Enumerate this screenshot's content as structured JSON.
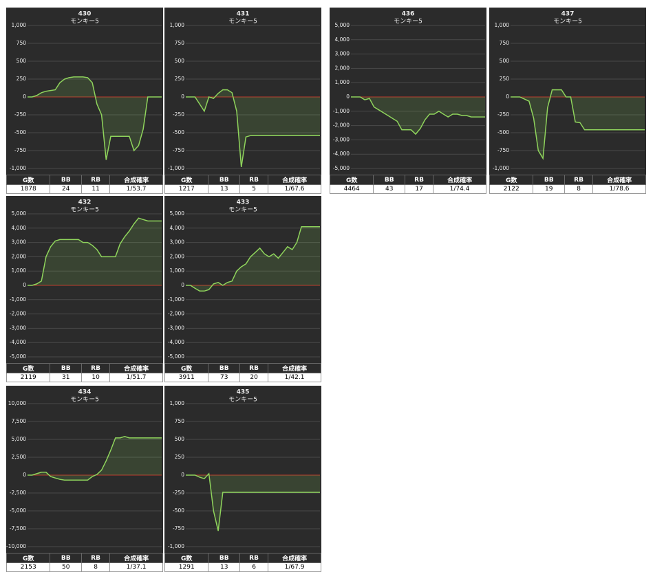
{
  "chart_data": [
    {
      "type": "line",
      "title": "430",
      "subtitle": "モンキー5",
      "color": "#8fd45c",
      "zero_color": "#c0392b",
      "ylim": [
        -1000,
        1000
      ],
      "yticks": [
        {
          "value": 1000,
          "label": "1,000"
        },
        750,
        500,
        250,
        0,
        -250,
        -500,
        -750,
        {
          "value": -1000,
          "label": "-1,000"
        }
      ],
      "values": [
        0,
        0,
        20,
        60,
        80,
        90,
        100,
        200,
        250,
        270,
        280,
        280,
        280,
        270,
        200,
        -100,
        -250,
        -880,
        -550,
        -550,
        -550,
        -550,
        -550,
        -750,
        -680,
        -450,
        0,
        0,
        0,
        0
      ],
      "table": {
        "columns": [
          "G数",
          "BB",
          "RB",
          "合成確率"
        ],
        "row": [
          1878,
          24,
          11,
          "1/53.7"
        ]
      }
    },
    {
      "type": "line",
      "title": "431",
      "subtitle": "モンキー5",
      "color": "#8fd45c",
      "zero_color": "#c0392b",
      "ylim": [
        -1000,
        1000
      ],
      "yticks": [
        {
          "value": 1000,
          "label": "1,000"
        },
        750,
        500,
        250,
        0,
        -250,
        -500,
        -750,
        {
          "value": -1000,
          "label": "-1,000"
        }
      ],
      "values": [
        0,
        0,
        0,
        -100,
        -200,
        0,
        -20,
        50,
        100,
        100,
        60,
        -200,
        -980,
        -560,
        -540,
        -540,
        -540,
        -540,
        -540,
        -540,
        -540,
        -540,
        -540,
        -540,
        -540,
        -540,
        -540,
        -540,
        -540,
        -540
      ],
      "table": {
        "columns": [
          "G数",
          "BB",
          "RB",
          "合成確率"
        ],
        "row": [
          1217,
          13,
          5,
          "1/67.6"
        ]
      }
    },
    {
      "type": "line",
      "title": "436",
      "subtitle": "モンキー5",
      "color": "#8fd45c",
      "zero_color": "#c0392b",
      "ylim": [
        -5000,
        5000
      ],
      "yticks": [
        {
          "value": 5000,
          "label": "5,000"
        },
        {
          "value": 4000,
          "label": "4,000"
        },
        {
          "value": 3000,
          "label": "3,000"
        },
        {
          "value": 2000,
          "label": "2,000"
        },
        {
          "value": 1000,
          "label": "1,000"
        },
        0,
        {
          "value": -1000,
          "label": "-1,000"
        },
        {
          "value": -2000,
          "label": "-2,000"
        },
        {
          "value": -3000,
          "label": "-3,000"
        },
        {
          "value": -4000,
          "label": "-4,000"
        },
        {
          "value": -5000,
          "label": "-5,000"
        }
      ],
      "values": [
        0,
        0,
        0,
        -200,
        -100,
        -700,
        -900,
        -1100,
        -1300,
        -1500,
        -1700,
        -2300,
        -2300,
        -2300,
        -2600,
        -2200,
        -1600,
        -1200,
        -1200,
        -1000,
        -1200,
        -1400,
        -1200,
        -1200,
        -1300,
        -1300,
        -1400,
        -1400,
        -1400,
        -1400
      ],
      "table": {
        "columns": [
          "G数",
          "BB",
          "RB",
          "合成確率"
        ],
        "row": [
          4464,
          43,
          17,
          "1/74.4"
        ]
      }
    },
    {
      "type": "line",
      "title": "437",
      "subtitle": "モンキー5",
      "color": "#8fd45c",
      "zero_color": "#c0392b",
      "ylim": [
        -1000,
        1000
      ],
      "yticks": [
        {
          "value": 1000,
          "label": "1,000"
        },
        750,
        500,
        250,
        0,
        -250,
        -500,
        -750,
        {
          "value": -1000,
          "label": "-1,000"
        }
      ],
      "values": [
        0,
        0,
        0,
        -30,
        -60,
        -300,
        -750,
        -860,
        -150,
        100,
        100,
        100,
        0,
        0,
        -350,
        -360,
        -460,
        -460,
        -460,
        -460,
        -460,
        -460,
        -460,
        -460,
        -460,
        -460,
        -460,
        -460,
        -460,
        -460
      ],
      "table": {
        "columns": [
          "G数",
          "BB",
          "RB",
          "合成確率"
        ],
        "row": [
          2122,
          19,
          8,
          "1/78.6"
        ]
      }
    },
    {
      "type": "line",
      "title": "432",
      "subtitle": "モンキー5",
      "color": "#8fd45c",
      "zero_color": "#c0392b",
      "ylim": [
        -5000,
        5000
      ],
      "yticks": [
        {
          "value": 5000,
          "label": "5,000"
        },
        {
          "value": 4000,
          "label": "4,000"
        },
        {
          "value": 3000,
          "label": "3,000"
        },
        {
          "value": 2000,
          "label": "2,000"
        },
        {
          "value": 1000,
          "label": "1,000"
        },
        0,
        {
          "value": -1000,
          "label": "-1,000"
        },
        {
          "value": -2000,
          "label": "-2,000"
        },
        {
          "value": -3000,
          "label": "-3,000"
        },
        {
          "value": -4000,
          "label": "-4,000"
        },
        {
          "value": -5000,
          "label": "-5,000"
        }
      ],
      "values": [
        0,
        0,
        100,
        300,
        2000,
        2700,
        3100,
        3200,
        3200,
        3200,
        3200,
        3200,
        3000,
        3000,
        2800,
        2500,
        2000,
        2000,
        2000,
        2000,
        2900,
        3400,
        3800,
        4300,
        4700,
        4600,
        4500,
        4500,
        4500,
        4500
      ],
      "table": {
        "columns": [
          "G数",
          "BB",
          "RB",
          "合成確率"
        ],
        "row": [
          2119,
          31,
          10,
          "1/51.7"
        ]
      }
    },
    {
      "type": "line",
      "title": "433",
      "subtitle": "モンキー5",
      "color": "#8fd45c",
      "zero_color": "#c0392b",
      "ylim": [
        -5000,
        5000
      ],
      "yticks": [
        {
          "value": 5000,
          "label": "5,000"
        },
        {
          "value": 4000,
          "label": "4,000"
        },
        {
          "value": 3000,
          "label": "3,000"
        },
        {
          "value": 2000,
          "label": "2,000"
        },
        {
          "value": 1000,
          "label": "1,000"
        },
        0,
        {
          "value": -1000,
          "label": "-1,000"
        },
        {
          "value": -2000,
          "label": "-2,000"
        },
        {
          "value": -3000,
          "label": "-3,000"
        },
        {
          "value": -4000,
          "label": "-4,000"
        },
        {
          "value": -5000,
          "label": "-5,000"
        }
      ],
      "values": [
        0,
        0,
        -200,
        -400,
        -400,
        -300,
        100,
        200,
        0,
        200,
        300,
        1000,
        1300,
        1500,
        2000,
        2300,
        2600,
        2200,
        2000,
        2200,
        1900,
        2300,
        2700,
        2500,
        3000,
        4100,
        4100,
        4100,
        4100,
        4100
      ],
      "table": {
        "columns": [
          "G数",
          "BB",
          "RB",
          "合成確率"
        ],
        "row": [
          3911,
          73,
          20,
          "1/42.1"
        ]
      }
    },
    {
      "type": "line",
      "title": "434",
      "subtitle": "モンキー5",
      "color": "#8fd45c",
      "zero_color": "#c0392b",
      "ylim": [
        -10000,
        10000
      ],
      "yticks": [
        {
          "value": 10000,
          "label": "10,000"
        },
        {
          "value": 7500,
          "label": "7,500"
        },
        {
          "value": 5000,
          "label": "5,000"
        },
        {
          "value": 2500,
          "label": "2,500"
        },
        0,
        {
          "value": -2500,
          "label": "-2,500"
        },
        {
          "value": -5000,
          "label": "-5,000"
        },
        {
          "value": -7500,
          "label": "-7,500"
        },
        {
          "value": -10000,
          "label": "-10,000"
        }
      ],
      "values": [
        0,
        0,
        200,
        400,
        400,
        -200,
        -400,
        -600,
        -700,
        -700,
        -700,
        -700,
        -700,
        -700,
        -200,
        100,
        700,
        2000,
        3500,
        5200,
        5200,
        5400,
        5200,
        5200,
        5200,
        5200,
        5200,
        5200,
        5200,
        5200
      ],
      "table": {
        "columns": [
          "G数",
          "BB",
          "RB",
          "合成確率"
        ],
        "row": [
          2153,
          50,
          8,
          "1/37.1"
        ]
      }
    },
    {
      "type": "line",
      "title": "435",
      "subtitle": "モンキー5",
      "color": "#8fd45c",
      "zero_color": "#c0392b",
      "ylim": [
        -1000,
        1000
      ],
      "yticks": [
        {
          "value": 1000,
          "label": "1,000"
        },
        750,
        500,
        250,
        0,
        -250,
        -500,
        -750,
        {
          "value": -1000,
          "label": "-1,000"
        }
      ],
      "values": [
        0,
        0,
        0,
        -30,
        -50,
        20,
        -500,
        -780,
        -240,
        -240,
        -240,
        -240,
        -240,
        -240,
        -240,
        -240,
        -240,
        -240,
        -240,
        -240,
        -240,
        -240,
        -240,
        -240,
        -240,
        -240,
        -240,
        -240,
        -240,
        -240
      ],
      "table": {
        "columns": [
          "G数",
          "BB",
          "RB",
          "合成確率"
        ],
        "row": [
          1291,
          13,
          6,
          "1/67.9"
        ]
      }
    }
  ]
}
